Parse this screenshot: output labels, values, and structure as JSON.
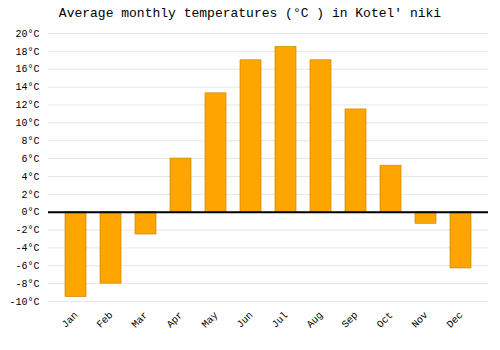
{
  "chart_data": {
    "type": "bar",
    "title": "Average monthly temperatures (°C ) in Kotelʹ niki",
    "categories": [
      "Jan",
      "Feb",
      "Mar",
      "Apr",
      "May",
      "Jun",
      "Jul",
      "Aug",
      "Sep",
      "Oct",
      "Nov",
      "Dec"
    ],
    "values": [
      -9.5,
      -8.0,
      -2.5,
      6.0,
      13.3,
      17.0,
      18.5,
      17.0,
      11.5,
      5.2,
      -1.3,
      -6.3
    ],
    "color": "#FFA500",
    "ylim": [
      -10,
      20
    ],
    "yticks": [
      {
        "value": -10,
        "label": "-10°C"
      },
      {
        "value": -8,
        "label": "-8°C"
      },
      {
        "value": -6,
        "label": "-6°C"
      },
      {
        "value": -4,
        "label": "-4°C"
      },
      {
        "value": -2,
        "label": "-2°C"
      },
      {
        "value": 0,
        "label": "0°C"
      },
      {
        "value": 2,
        "label": "2°C"
      },
      {
        "value": 4,
        "label": "4°C"
      },
      {
        "value": 6,
        "label": "6°C"
      },
      {
        "value": 8,
        "label": "8°C"
      },
      {
        "value": 10,
        "label": "10°C"
      },
      {
        "value": 12,
        "label": "12°C"
      },
      {
        "value": 14,
        "label": "14°C"
      },
      {
        "value": 16,
        "label": "16°C"
      },
      {
        "value": 18,
        "label": "18°C"
      },
      {
        "value": 20,
        "label": "20°C"
      }
    ],
    "grid": true
  }
}
